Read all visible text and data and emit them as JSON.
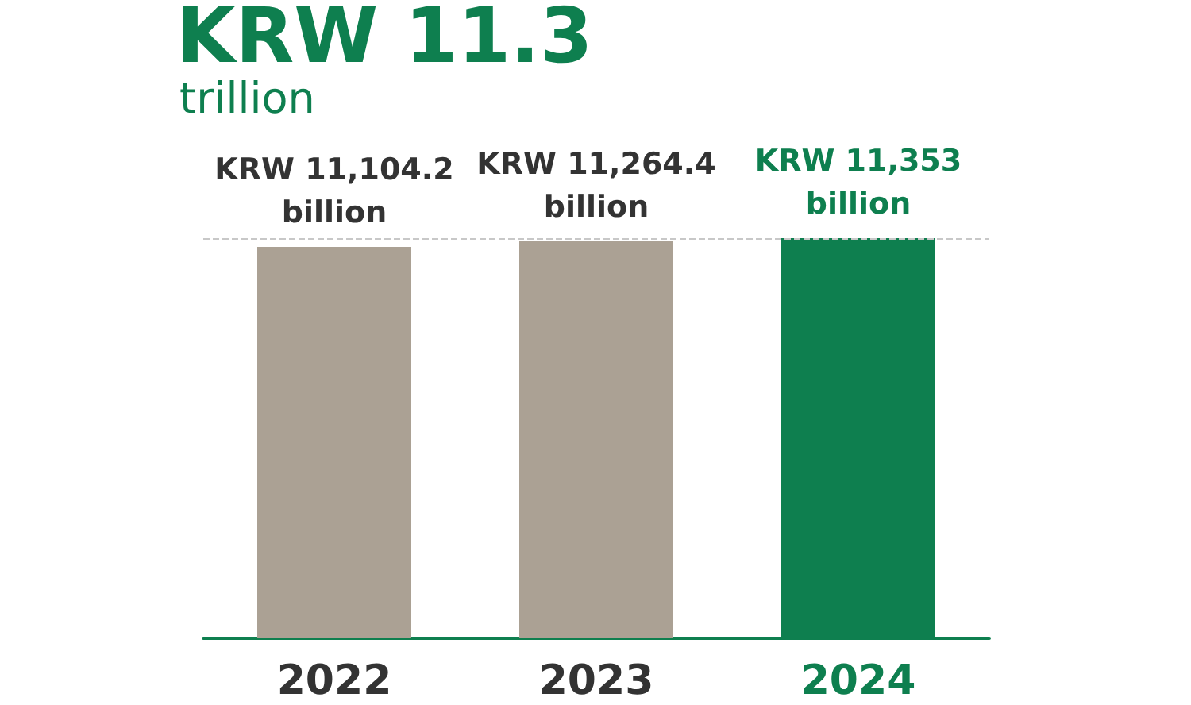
{
  "chart_data": {
    "type": "bar",
    "title": "KRW 11.3",
    "subtitle": "trillion",
    "categories": [
      "2022",
      "2023",
      "2024"
    ],
    "values": [
      11104.2,
      11264.4,
      11353
    ],
    "colors": [
      "#aba194",
      "#aba194",
      "#0e7f4f"
    ],
    "value_labels": [
      "KRW 11,104.2\nbillion",
      "KRW 11,264.4\nbillion",
      "KRW 11,353\nbillion"
    ],
    "ref_lines": [
      {
        "axis": "y",
        "value": 11353,
        "color": "#c8c8c8",
        "line_style": "dashed"
      }
    ]
  }
}
